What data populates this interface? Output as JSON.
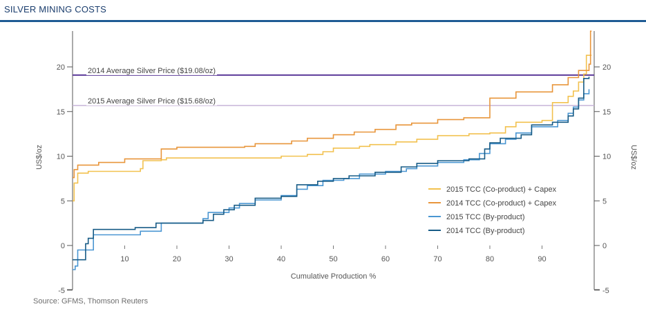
{
  "header": {
    "title": "SILVER MINING COSTS"
  },
  "source": "Source: GFMS, Thomson Reuters",
  "chart_data": {
    "type": "line",
    "step": true,
    "xlabel": "Cumulative Production %",
    "ylabel": "US$/oz",
    "ylabel_right": "US$/oz",
    "xlim": [
      0,
      100
    ],
    "ylim": [
      -5,
      24
    ],
    "x_ticks": [
      10,
      20,
      30,
      40,
      50,
      60,
      70,
      80,
      90
    ],
    "y_ticks": [
      -5,
      0,
      5,
      10,
      15,
      20
    ],
    "grid": false,
    "legend_position": "bottom-right",
    "reference_lines": [
      {
        "label": "2014 Average Silver Price ($19.08/oz)",
        "value": 19.08,
        "color": "#5b3a99"
      },
      {
        "label": "2015 Average Silver Price ($15.68/oz)",
        "value": 15.68,
        "color": "#c7b3d9"
      }
    ],
    "series": [
      {
        "name": "2015 TCC (Co-product) + Capex",
        "color": "#f2c14e",
        "points": [
          [
            0,
            5
          ],
          [
            0.3,
            7
          ],
          [
            1,
            8.1
          ],
          [
            3,
            8.3
          ],
          [
            13,
            8.6
          ],
          [
            13.5,
            9.5
          ],
          [
            17,
            9.6
          ],
          [
            18,
            9.8
          ],
          [
            40,
            10
          ],
          [
            45,
            10.2
          ],
          [
            48,
            10.5
          ],
          [
            50,
            10.9
          ],
          [
            55,
            11.1
          ],
          [
            57,
            11.3
          ],
          [
            62,
            11.6
          ],
          [
            66,
            11.9
          ],
          [
            70,
            12.3
          ],
          [
            76,
            12.5
          ],
          [
            80,
            12.6
          ],
          [
            83,
            13.3
          ],
          [
            85,
            13.8
          ],
          [
            90,
            14
          ],
          [
            92,
            16
          ],
          [
            95,
            16.7
          ],
          [
            96,
            17.3
          ],
          [
            97,
            18.3
          ],
          [
            98,
            19.2
          ],
          [
            98.5,
            21.3
          ],
          [
            99.5,
            21.3
          ]
        ]
      },
      {
        "name": "2014 TCC (Co-product) + Capex",
        "color": "#e8953a",
        "points": [
          [
            0,
            7.6
          ],
          [
            0.3,
            8.5
          ],
          [
            1,
            9
          ],
          [
            5,
            9.3
          ],
          [
            10,
            9.7
          ],
          [
            17,
            10.8
          ],
          [
            20,
            11
          ],
          [
            33,
            11.1
          ],
          [
            35,
            11.4
          ],
          [
            42,
            11.7
          ],
          [
            45,
            12
          ],
          [
            50,
            12.4
          ],
          [
            54,
            12.7
          ],
          [
            58,
            13
          ],
          [
            62,
            13.5
          ],
          [
            65,
            13.7
          ],
          [
            70,
            14.1
          ],
          [
            75,
            14.3
          ],
          [
            80,
            16.5
          ],
          [
            85,
            17.2
          ],
          [
            92,
            18
          ],
          [
            95,
            18.8
          ],
          [
            97,
            19.6
          ],
          [
            99,
            20.3
          ],
          [
            99.3,
            24
          ],
          [
            99.5,
            24
          ]
        ]
      },
      {
        "name": "2015 TCC (By-product)",
        "color": "#4a96d2",
        "points": [
          [
            0,
            -2.7
          ],
          [
            0.5,
            -2.3
          ],
          [
            1,
            -0.5
          ],
          [
            4,
            1.2
          ],
          [
            13,
            1.6
          ],
          [
            17,
            2.5
          ],
          [
            25,
            3
          ],
          [
            26,
            3.7
          ],
          [
            30,
            4.2
          ],
          [
            32,
            4.7
          ],
          [
            35,
            5.1
          ],
          [
            40,
            5.6
          ],
          [
            43,
            6.3
          ],
          [
            45,
            6.7
          ],
          [
            48,
            7.3
          ],
          [
            52,
            7.5
          ],
          [
            55,
            8
          ],
          [
            60,
            8.3
          ],
          [
            64,
            8.6
          ],
          [
            66,
            8.9
          ],
          [
            70,
            9.3
          ],
          [
            75,
            9.6
          ],
          [
            78,
            10.3
          ],
          [
            80,
            11.4
          ],
          [
            83,
            11.9
          ],
          [
            85,
            12.6
          ],
          [
            88,
            13.3
          ],
          [
            93,
            14
          ],
          [
            95,
            14.8
          ],
          [
            96,
            15.5
          ],
          [
            97,
            16.3
          ],
          [
            98,
            17
          ],
          [
            99,
            17.5
          ]
        ]
      },
      {
        "name": "2014 TCC (By-product)",
        "color": "#175b86",
        "points": [
          [
            0,
            -1.6
          ],
          [
            2,
            -1.6
          ],
          [
            2.5,
            0.2
          ],
          [
            3,
            0.8
          ],
          [
            4,
            1.8
          ],
          [
            12,
            2
          ],
          [
            16,
            2.5
          ],
          [
            25,
            2.8
          ],
          [
            27,
            3.5
          ],
          [
            29,
            4
          ],
          [
            31,
            4.5
          ],
          [
            35,
            5.3
          ],
          [
            40,
            5.5
          ],
          [
            43,
            6.8
          ],
          [
            47,
            7.2
          ],
          [
            50,
            7.5
          ],
          [
            53,
            7.8
          ],
          [
            58,
            8.2
          ],
          [
            63,
            8.8
          ],
          [
            66,
            9.2
          ],
          [
            70,
            9.5
          ],
          [
            76,
            9.7
          ],
          [
            79,
            10.8
          ],
          [
            80,
            11.5
          ],
          [
            82,
            12
          ],
          [
            86,
            12.4
          ],
          [
            88,
            13.5
          ],
          [
            92,
            13.8
          ],
          [
            95,
            14.5
          ],
          [
            96,
            15.3
          ],
          [
            97,
            16.5
          ],
          [
            98,
            18.7
          ],
          [
            99,
            18.9
          ]
        ]
      }
    ]
  }
}
